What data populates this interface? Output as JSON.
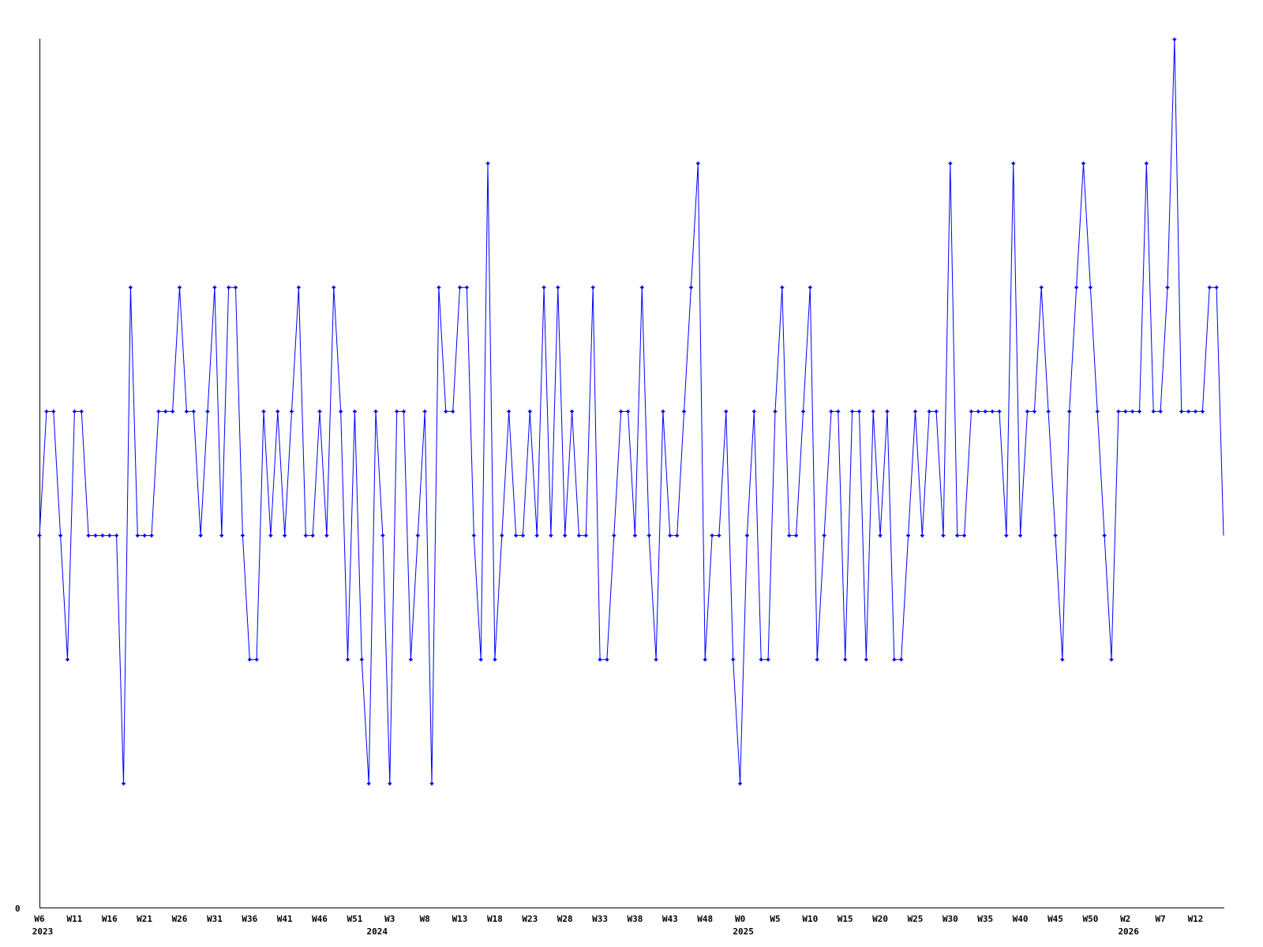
{
  "chart_data": {
    "type": "line",
    "title": "",
    "xlabel": "",
    "ylabel": "",
    "ylim": [
      0,
      7
    ],
    "y_tick_labels": [
      "0"
    ],
    "grid": false,
    "legend": "none",
    "line_color": "#0000ff",
    "axis_color": "#000000",
    "x_ticks": [
      {
        "label": "W6",
        "year": "2023"
      },
      {
        "label": "W11"
      },
      {
        "label": "W16"
      },
      {
        "label": "W21"
      },
      {
        "label": "W26"
      },
      {
        "label": "W31"
      },
      {
        "label": "W36"
      },
      {
        "label": "W41"
      },
      {
        "label": "W46"
      },
      {
        "label": "W51"
      },
      {
        "label": "W3",
        "year": "2024"
      },
      {
        "label": "W8"
      },
      {
        "label": "W13"
      },
      {
        "label": "W18"
      },
      {
        "label": "W23"
      },
      {
        "label": "W28"
      },
      {
        "label": "W33"
      },
      {
        "label": "W38"
      },
      {
        "label": "W43"
      },
      {
        "label": "W48"
      },
      {
        "label": "W0",
        "year": "2025"
      },
      {
        "label": "W5"
      },
      {
        "label": "W10"
      },
      {
        "label": "W15"
      },
      {
        "label": "W20"
      },
      {
        "label": "W25"
      },
      {
        "label": "W30"
      },
      {
        "label": "W35"
      },
      {
        "label": "W40"
      },
      {
        "label": "W45"
      },
      {
        "label": "W50"
      },
      {
        "label": "W2",
        "year": "2026"
      },
      {
        "label": "W7"
      },
      {
        "label": "W12"
      }
    ],
    "values": [
      3,
      4,
      4,
      3,
      2,
      4,
      4,
      3,
      3,
      3,
      3,
      3,
      1,
      5,
      3,
      3,
      3,
      4,
      4,
      4,
      5,
      4,
      4,
      3,
      4,
      5,
      3,
      5,
      5,
      3,
      2,
      2,
      4,
      3,
      4,
      3,
      4,
      5,
      3,
      3,
      4,
      3,
      5,
      4,
      2,
      4,
      2,
      1,
      4,
      3,
      1,
      4,
      4,
      2,
      3,
      4,
      1,
      5,
      4,
      4,
      5,
      5,
      3,
      2,
      6,
      2,
      3,
      4,
      3,
      3,
      4,
      3,
      5,
      3,
      5,
      3,
      4,
      3,
      3,
      5,
      2,
      2,
      3,
      4,
      4,
      3,
      5,
      3,
      2,
      4,
      3,
      3,
      4,
      5,
      6,
      2,
      3,
      3,
      4,
      2,
      1,
      3,
      4,
      2,
      2,
      4,
      5,
      3,
      3,
      4,
      5,
      2,
      3,
      4,
      4,
      2,
      4,
      4,
      2,
      4,
      3,
      4,
      2,
      2,
      3,
      4,
      3,
      4,
      4,
      3,
      6,
      3,
      3,
      4,
      4,
      4,
      4,
      4,
      3,
      6,
      3,
      4,
      4,
      5,
      4,
      3,
      2,
      4,
      5,
      6,
      5,
      4,
      3,
      2,
      4,
      4,
      4,
      4,
      6,
      4,
      4,
      5,
      7,
      4,
      4,
      4,
      4,
      5,
      5,
      3
    ]
  }
}
